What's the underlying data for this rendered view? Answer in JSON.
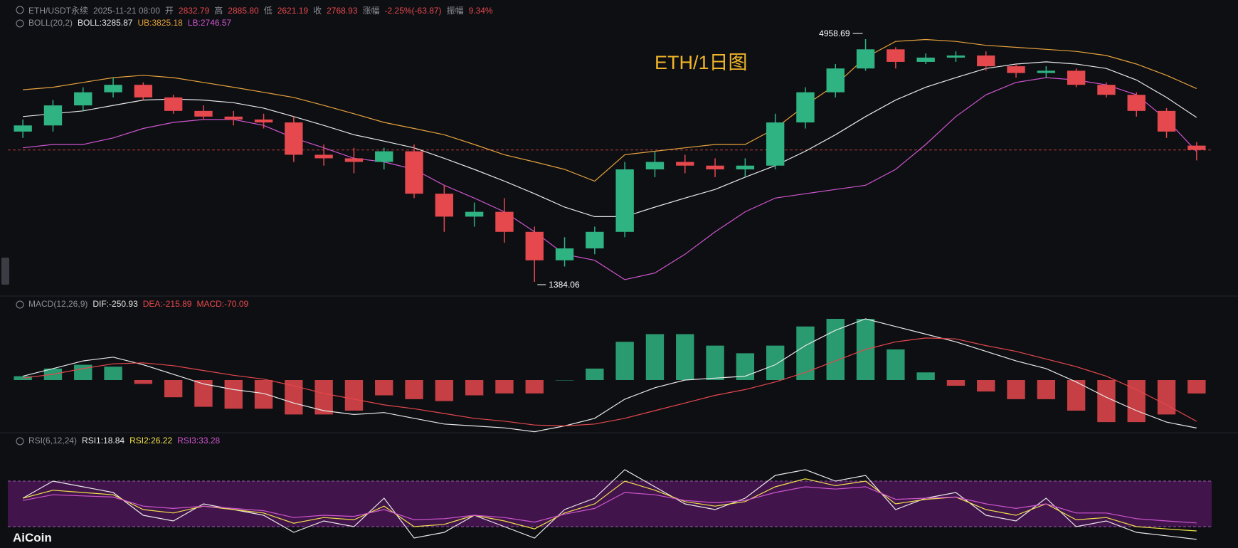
{
  "header": {
    "symbol": "ETH/USDT永续",
    "time": "2025-11-21 08:00",
    "open_label": "开",
    "open": "2832.79",
    "high_label": "高",
    "high": "2885.80",
    "low_label": "低",
    "low": "2621.19",
    "close_label": "收",
    "close": "2768.93",
    "change_label": "涨幅",
    "change": "-2.25%(-63.87)",
    "amplitude_label": "振幅",
    "amplitude": "9.34%"
  },
  "title": "ETH/1日图",
  "logo": "AiCoin",
  "chart_data": [
    {
      "type": "candlestick",
      "log_scale": true,
      "indicator": "BOLL(20,2)",
      "up_color": "#2fb383",
      "down_color": "#e5484d",
      "max_label": "4958.69",
      "min_label": "1384.06",
      "open": [
        3050,
        3150,
        3500,
        3750,
        3900,
        3650,
        3400,
        3300,
        3250,
        3200,
        2700,
        2650,
        2600,
        2750,
        2200,
        1950,
        2000,
        1800,
        1550,
        1650,
        1800,
        2500,
        2600,
        2550,
        2500,
        2550,
        3200,
        3750,
        4250,
        4700,
        4400,
        4500,
        4550,
        4300,
        4150,
        4200,
        3900,
        3700,
        3400,
        2832.79
      ],
      "high": [
        3250,
        3600,
        3850,
        4050,
        3950,
        3700,
        3500,
        3400,
        3350,
        3300,
        2850,
        2800,
        2800,
        2850,
        2300,
        2100,
        2150,
        1850,
        1750,
        1850,
        2600,
        2750,
        2700,
        2650,
        2650,
        3350,
        3850,
        4350,
        4958.69,
        4750,
        4600,
        4650,
        4650,
        4350,
        4300,
        4250,
        3950,
        3750,
        3450,
        2885.8
      ],
      "low": [
        2950,
        3050,
        3400,
        3650,
        3600,
        3350,
        3250,
        3150,
        3100,
        2600,
        2550,
        2450,
        2500,
        2150,
        1800,
        1850,
        1700,
        1384.06,
        1500,
        1600,
        1750,
        2400,
        2450,
        2400,
        2400,
        2500,
        3100,
        3650,
        4200,
        4250,
        4350,
        4400,
        4200,
        4050,
        4050,
        3850,
        3650,
        3300,
        2950,
        2621.19
      ],
      "close": [
        3150,
        3500,
        3750,
        3900,
        3650,
        3400,
        3300,
        3250,
        3200,
        2700,
        2650,
        2600,
        2750,
        2200,
        1950,
        2000,
        1800,
        1550,
        1650,
        1800,
        2500,
        2600,
        2550,
        2500,
        2550,
        3200,
        3750,
        4250,
        4700,
        4400,
        4500,
        4550,
        4300,
        4150,
        4200,
        3900,
        3700,
        3400,
        3050,
        2768.93
      ],
      "series": [
        {
          "label": "BOLL:3285.87",
          "color": "#e8e8e8",
          "values": [
            3300,
            3350,
            3400,
            3500,
            3600,
            3620,
            3600,
            3550,
            3450,
            3300,
            3150,
            3000,
            2900,
            2800,
            2650,
            2500,
            2350,
            2200,
            2050,
            1950,
            1950,
            2050,
            2150,
            2250,
            2400,
            2550,
            2750,
            3000,
            3300,
            3600,
            3850,
            4050,
            4250,
            4350,
            4400,
            4350,
            4250,
            4000,
            3650,
            3285.87
          ]
        },
        {
          "label": "UB:3825.18",
          "color": "#e6a23c",
          "values": [
            3800,
            3850,
            3950,
            4050,
            4100,
            4050,
            3950,
            3850,
            3750,
            3650,
            3500,
            3350,
            3200,
            3100,
            3000,
            2850,
            2700,
            2600,
            2500,
            2350,
            2700,
            2750,
            2800,
            2850,
            2850,
            3100,
            3500,
            3900,
            4500,
            4900,
            4950,
            4900,
            4800,
            4750,
            4700,
            4650,
            4550,
            4350,
            4100,
            3825.18
          ]
        },
        {
          "label": "LB:2746.57",
          "color": "#cf55cf",
          "values": [
            2800,
            2850,
            2850,
            2950,
            3100,
            3200,
            3250,
            3250,
            3150,
            2950,
            2800,
            2650,
            2600,
            2500,
            2300,
            2150,
            2000,
            1800,
            1600,
            1550,
            1400,
            1450,
            1600,
            1800,
            2000,
            2150,
            2200,
            2250,
            2300,
            2500,
            2850,
            3300,
            3700,
            3950,
            4050,
            4000,
            3900,
            3700,
            3250,
            2746.57
          ]
        }
      ]
    },
    {
      "type": "macd",
      "indicator": "MACD(12,26,9)",
      "series": [
        {
          "label": "DIF:-250.93",
          "color": "#e8e8e8",
          "values": [
            20,
            60,
            100,
            120,
            80,
            30,
            -20,
            -50,
            -70,
            -120,
            -160,
            -180,
            -170,
            -200,
            -230,
            -240,
            -250,
            -270,
            -240,
            -200,
            -100,
            -40,
            0,
            10,
            20,
            80,
            180,
            260,
            320,
            280,
            240,
            200,
            150,
            100,
            60,
            -10,
            -90,
            -160,
            -220,
            -250.93
          ]
        },
        {
          "label": "DEA:-215.89",
          "color": "#e5484d",
          "values": [
            10,
            30,
            60,
            85,
            90,
            75,
            50,
            25,
            5,
            -30,
            -70,
            -100,
            -130,
            -150,
            -175,
            -200,
            -215,
            -235,
            -240,
            -230,
            -200,
            -160,
            -120,
            -80,
            -50,
            -10,
            40,
            100,
            160,
            200,
            220,
            215,
            180,
            150,
            110,
            70,
            20,
            -50,
            -130,
            -215.89
          ]
        }
      ],
      "histogram": {
        "label": "MACD:-70.09",
        "up_color": "#2fb383",
        "down_color": "#e5484d",
        "values": [
          20,
          60,
          80,
          70,
          -20,
          -90,
          -140,
          -150,
          -150,
          -180,
          -180,
          -160,
          -80,
          -100,
          -110,
          -80,
          -70,
          -70,
          0,
          60,
          200,
          240,
          240,
          180,
          140,
          180,
          280,
          320,
          320,
          160,
          40,
          -30,
          -60,
          -100,
          -100,
          -160,
          -220,
          -220,
          -180,
          -70.09
        ]
      }
    },
    {
      "type": "rsi",
      "indicator": "RSI(6,12,24)",
      "band": [
        30,
        70
      ],
      "band_color": "#4a1656",
      "series": [
        {
          "label": "RSI1:18.84",
          "color": "#e8e8e8",
          "values": [
            55,
            70,
            65,
            60,
            40,
            35,
            50,
            45,
            40,
            25,
            35,
            30,
            55,
            20,
            25,
            40,
            30,
            20,
            45,
            55,
            80,
            65,
            50,
            45,
            55,
            75,
            80,
            70,
            75,
            45,
            55,
            60,
            40,
            35,
            55,
            30,
            35,
            25,
            22,
            18.84
          ]
        },
        {
          "label": "RSI2:26.22",
          "color": "#f1e04a",
          "values": [
            55,
            62,
            60,
            58,
            45,
            42,
            48,
            45,
            42,
            33,
            38,
            36,
            48,
            30,
            32,
            40,
            35,
            28,
            42,
            50,
            70,
            62,
            52,
            48,
            52,
            65,
            72,
            66,
            70,
            50,
            54,
            56,
            45,
            40,
            50,
            36,
            38,
            30,
            28,
            26.22
          ]
        },
        {
          "label": "RSI3:33.28",
          "color": "#cf55cf",
          "values": [
            53,
            58,
            57,
            56,
            48,
            46,
            48,
            46,
            44,
            38,
            40,
            39,
            45,
            36,
            37,
            40,
            38,
            34,
            41,
            46,
            60,
            58,
            53,
            51,
            53,
            60,
            65,
            63,
            65,
            54,
            55,
            56,
            50,
            46,
            50,
            42,
            42,
            37,
            35,
            33.28
          ]
        }
      ]
    }
  ]
}
